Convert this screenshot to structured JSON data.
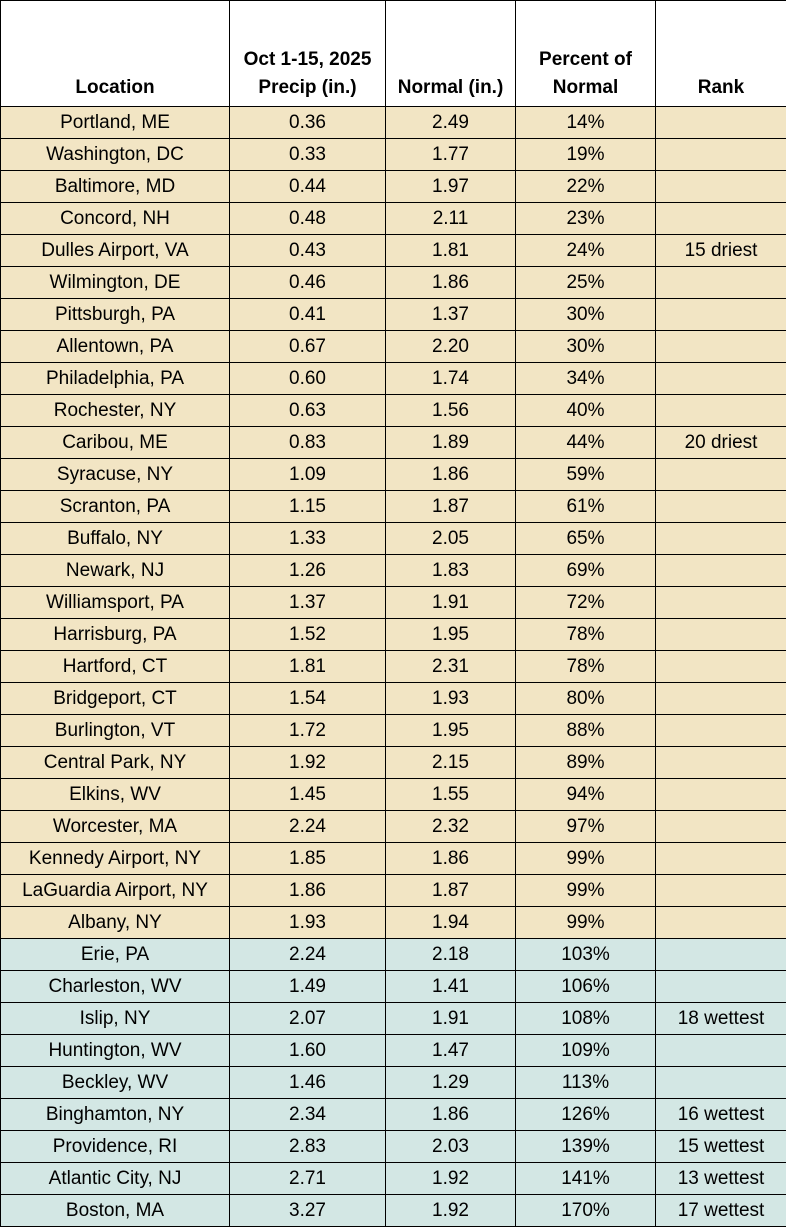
{
  "table": {
    "header": [
      [
        "Location"
      ],
      [
        "Oct 1-15, 2025",
        "Precip (in.)"
      ],
      [
        "Normal (in.)"
      ],
      [
        "Percent of",
        "Normal"
      ],
      [
        "Rank"
      ]
    ],
    "row_groups": [
      {
        "color": "#f2e5c4",
        "rows": [
          [
            "Portland, ME",
            "0.36",
            "2.49",
            "14%"
          ],
          [
            "Washington, DC",
            "0.33",
            "1.77",
            "19%"
          ],
          [
            "Baltimore, MD",
            "0.44",
            "1.97",
            "22%"
          ],
          [
            "Concord, NH",
            "0.48",
            "2.11",
            "23%"
          ],
          [
            "Dulles Airport, VA",
            "0.43",
            "1.81",
            "24%",
            "15 driest"
          ],
          [
            "Wilmington, DE",
            "0.46",
            "1.86",
            "25%"
          ],
          [
            "Pittsburgh, PA",
            "0.41",
            "1.37",
            "30%"
          ],
          [
            "Allentown, PA",
            "0.67",
            "2.20",
            "30%"
          ],
          [
            "Philadelphia, PA",
            "0.60",
            "1.74",
            "34%"
          ],
          [
            "Rochester, NY",
            "0.63",
            "1.56",
            "40%"
          ],
          [
            "Caribou, ME",
            "0.83",
            "1.89",
            "44%",
            "20 driest"
          ],
          [
            "Syracuse, NY",
            "1.09",
            "1.86",
            "59%"
          ],
          [
            "Scranton, PA",
            "1.15",
            "1.87",
            "61%"
          ],
          [
            "Buffalo, NY",
            "1.33",
            "2.05",
            "65%"
          ],
          [
            "Newark, NJ",
            "1.26",
            "1.83",
            "69%"
          ],
          [
            "Williamsport, PA",
            "1.37",
            "1.91",
            "72%"
          ],
          [
            "Harrisburg, PA",
            "1.52",
            "1.95",
            "78%"
          ],
          [
            "Hartford, CT",
            "1.81",
            "2.31",
            "78%"
          ],
          [
            "Bridgeport, CT",
            "1.54",
            "1.93",
            "80%"
          ],
          [
            "Burlington, VT",
            "1.72",
            "1.95",
            "88%"
          ],
          [
            "Central Park, NY",
            "1.92",
            "2.15",
            "89%"
          ],
          [
            "Elkins, WV",
            "1.45",
            "1.55",
            "94%"
          ],
          [
            "Worcester, MA",
            "2.24",
            "2.32",
            "97%"
          ],
          [
            "Kennedy Airport, NY",
            "1.85",
            "1.86",
            "99%"
          ],
          [
            "LaGuardia Airport, NY",
            "1.86",
            "1.87",
            "99%"
          ],
          [
            "Albany, NY",
            "1.93",
            "1.94",
            "99%"
          ]
        ]
      },
      {
        "color": "#d3e7e4",
        "rows": [
          [
            "Erie, PA",
            "2.24",
            "2.18",
            "103%"
          ],
          [
            "Charleston, WV",
            "1.49",
            "1.41",
            "106%"
          ],
          [
            "Islip, NY",
            "2.07",
            "1.91",
            "108%",
            "18 wettest"
          ],
          [
            "Huntington, WV",
            "1.60",
            "1.47",
            "109%"
          ],
          [
            "Beckley, WV",
            "1.46",
            "1.29",
            "113%"
          ],
          [
            "Binghamton, NY",
            "2.34",
            "1.86",
            "126%",
            "16 wettest"
          ],
          [
            "Providence, RI",
            "2.83",
            "2.03",
            "139%",
            "15 wettest"
          ],
          [
            "Atlantic City, NJ",
            "2.71",
            "1.92",
            "141%",
            "13 wettest"
          ],
          [
            "Boston, MA",
            "3.27",
            "1.92",
            "170%",
            "17 wettest"
          ]
        ]
      }
    ]
  }
}
